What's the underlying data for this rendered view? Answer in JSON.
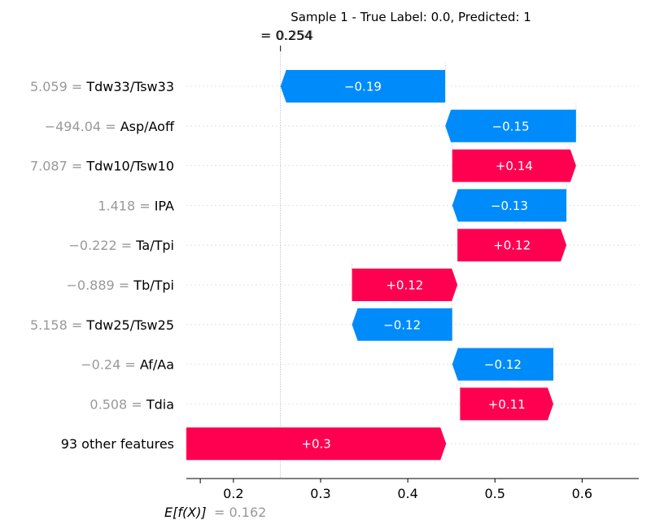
{
  "chart_data": {
    "type": "waterfall",
    "title": "Sample 1 - True Label: 0.0, Predicted: 1",
    "fx_label": "= 0.254",
    "fx_value_overlay": "0.254",
    "base_label": "E[f(X)]",
    "base_value_text": "= 0.162",
    "base_value": 0.162,
    "fx_value": 0.254,
    "xlim": [
      0.146,
      0.665
    ],
    "xticks": [
      {
        "v": 0.2,
        "label": "0.2"
      },
      {
        "v": 0.3,
        "label": "0.3"
      },
      {
        "v": 0.4,
        "label": "0.4"
      },
      {
        "v": 0.5,
        "label": "0.5"
      },
      {
        "v": 0.6,
        "label": "0.6"
      }
    ],
    "colors": {
      "positive": "#ff0051",
      "negative": "#008bfb",
      "value_text": "#999999"
    },
    "features": [
      {
        "value": "5.059",
        "name": "Tdw33/Tsw33",
        "start": 0.443,
        "contribution": -0.189,
        "label": "−0.19"
      },
      {
        "value": "−494.04",
        "name": "Asp/Aoff",
        "start": 0.593,
        "contribution": -0.15,
        "label": "−0.15"
      },
      {
        "value": "7.087",
        "name": "Tdw10/Tsw10",
        "start": 0.451,
        "contribution": 0.142,
        "label": "+0.14"
      },
      {
        "value": "1.418",
        "name": "IPA",
        "start": 0.582,
        "contribution": -0.131,
        "label": "−0.13"
      },
      {
        "value": "−0.222",
        "name": "Ta/Tpi",
        "start": 0.457,
        "contribution": 0.125,
        "label": "+0.12"
      },
      {
        "value": "−0.889",
        "name": "Tb/Tpi",
        "start": 0.336,
        "contribution": 0.121,
        "label": "+0.12"
      },
      {
        "value": "5.158",
        "name": "Tdw25/Tsw25",
        "start": 0.451,
        "contribution": -0.115,
        "label": "−0.12"
      },
      {
        "value": "−0.24",
        "name": "Af/Aa",
        "start": 0.567,
        "contribution": -0.116,
        "label": "−0.12"
      },
      {
        "value": "0.508",
        "name": "Tdia",
        "start": 0.46,
        "contribution": 0.107,
        "label": "+0.11"
      },
      {
        "value": "",
        "name": "93 other features",
        "start": 0.146,
        "contribution": 0.298,
        "label": "+0.3"
      }
    ]
  }
}
